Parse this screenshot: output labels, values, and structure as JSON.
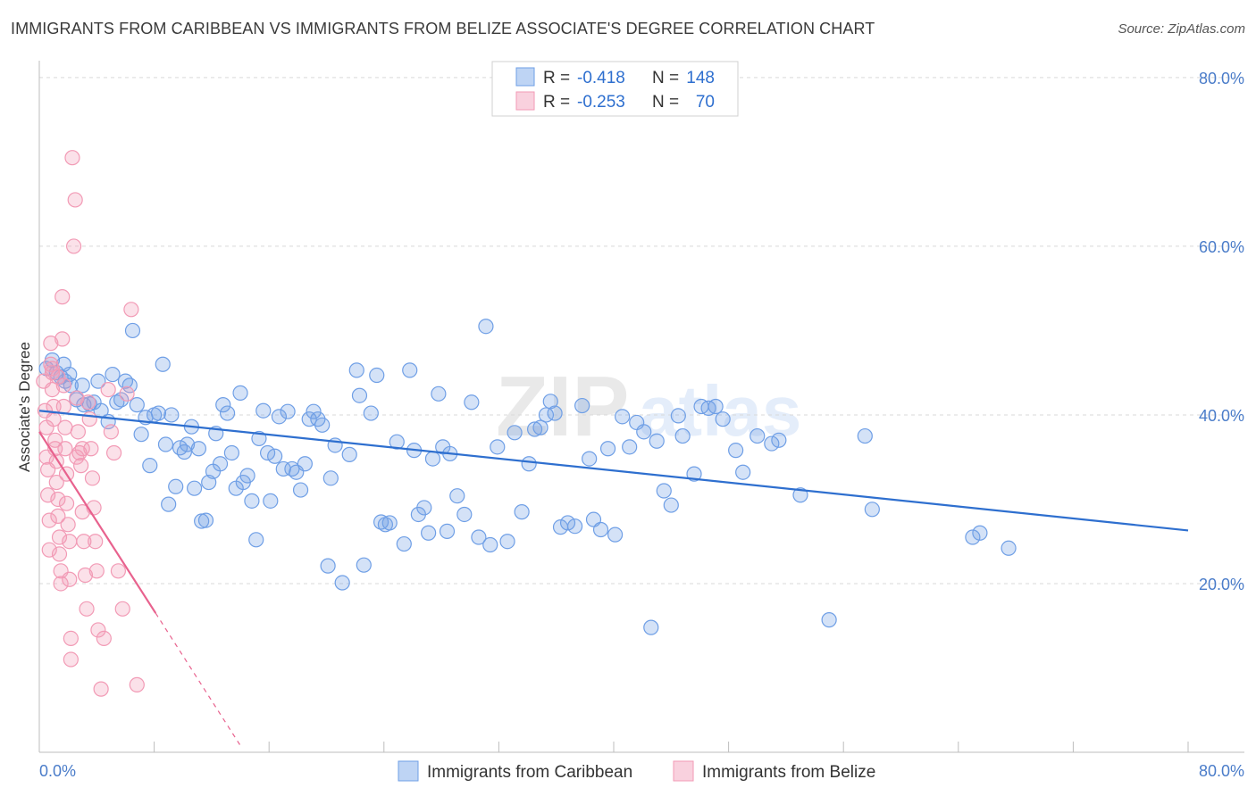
{
  "title": "IMMIGRANTS FROM CARIBBEAN VS IMMIGRANTS FROM BELIZE ASSOCIATE'S DEGREE CORRELATION CHART",
  "source": "Source: ZipAtlas.com",
  "watermark": "ZIPatlas",
  "colors": {
    "blue": "#6f9fe6",
    "blue_line": "#2e6fcf",
    "pink": "#f29ab5",
    "pink_line": "#e8628e",
    "tick_label": "#4a7cc9",
    "grid": "#d9d9d9"
  },
  "legend": {
    "rows": [
      {
        "r_label": "R = ",
        "r_value": "-0.418",
        "n_label": "N = ",
        "n_value": "148",
        "color": "blue"
      },
      {
        "r_label": "R = ",
        "r_value": "-0.253",
        "n_label": "N = ",
        "n_value": "70",
        "color": "pink"
      }
    ]
  },
  "bottom_legend": [
    {
      "label": "Immigrants from Caribbean",
      "color": "blue"
    },
    {
      "label": "Immigrants from Belize",
      "color": "pink"
    }
  ],
  "chart_data": {
    "type": "scatter",
    "ylabel": "Associate's Degree",
    "xlabel": "",
    "xlim": [
      0,
      80
    ],
    "ylim": [
      0,
      82
    ],
    "x_tick_labels": [
      "0.0%",
      "80.0%"
    ],
    "y_ticks": [
      20,
      40,
      60,
      80
    ],
    "y_tick_labels": [
      "20.0%",
      "40.0%",
      "60.0%",
      "80.0%"
    ],
    "grid": "horizontal dashed",
    "series": [
      {
        "name": "Immigrants from Caribbean",
        "color": "blue",
        "points": [
          [
            0.5,
            45.5
          ],
          [
            0.9,
            46.5
          ],
          [
            1.2,
            45.0
          ],
          [
            1.5,
            44.5
          ],
          [
            1.7,
            46.0
          ],
          [
            1.8,
            44.0
          ],
          [
            2.1,
            44.8
          ],
          [
            2.2,
            43.5
          ],
          [
            2.6,
            41.8
          ],
          [
            3.0,
            43.5
          ],
          [
            3.1,
            41.2
          ],
          [
            3.5,
            41.3
          ],
          [
            3.8,
            41.5
          ],
          [
            4.1,
            44.0
          ],
          [
            4.3,
            40.5
          ],
          [
            4.8,
            39.2
          ],
          [
            5.1,
            44.8
          ],
          [
            5.4,
            41.5
          ],
          [
            5.7,
            41.8
          ],
          [
            6.0,
            44.0
          ],
          [
            6.3,
            43.5
          ],
          [
            6.5,
            50.0
          ],
          [
            6.8,
            41.2
          ],
          [
            7.1,
            37.7
          ],
          [
            7.4,
            39.7
          ],
          [
            7.7,
            34.0
          ],
          [
            8.0,
            40.0
          ],
          [
            8.3,
            40.2
          ],
          [
            8.6,
            46.0
          ],
          [
            8.8,
            36.5
          ],
          [
            9.0,
            29.4
          ],
          [
            9.2,
            40.0
          ],
          [
            9.5,
            31.5
          ],
          [
            9.8,
            36.1
          ],
          [
            10.1,
            35.6
          ],
          [
            10.3,
            36.5
          ],
          [
            10.6,
            38.6
          ],
          [
            10.8,
            31.3
          ],
          [
            11.1,
            36.0
          ],
          [
            11.3,
            27.4
          ],
          [
            11.6,
            27.5
          ],
          [
            11.8,
            32.0
          ],
          [
            12.1,
            33.3
          ],
          [
            12.3,
            37.8
          ],
          [
            12.6,
            34.2
          ],
          [
            12.8,
            41.2
          ],
          [
            13.1,
            40.2
          ],
          [
            13.4,
            35.5
          ],
          [
            13.7,
            31.3
          ],
          [
            14.0,
            42.6
          ],
          [
            14.2,
            32.0
          ],
          [
            14.5,
            32.8
          ],
          [
            14.8,
            29.8
          ],
          [
            15.1,
            25.2
          ],
          [
            15.3,
            37.2
          ],
          [
            15.6,
            40.5
          ],
          [
            15.9,
            35.5
          ],
          [
            16.1,
            29.8
          ],
          [
            16.4,
            35.1
          ],
          [
            16.7,
            39.8
          ],
          [
            17.0,
            33.6
          ],
          [
            17.3,
            40.4
          ],
          [
            17.6,
            33.6
          ],
          [
            17.9,
            33.2
          ],
          [
            18.2,
            31.1
          ],
          [
            18.5,
            34.2
          ],
          [
            18.8,
            39.5
          ],
          [
            19.1,
            40.4
          ],
          [
            19.4,
            39.5
          ],
          [
            19.7,
            38.8
          ],
          [
            20.1,
            22.1
          ],
          [
            20.3,
            32.5
          ],
          [
            20.6,
            36.4
          ],
          [
            21.1,
            20.1
          ],
          [
            21.6,
            35.3
          ],
          [
            22.1,
            45.3
          ],
          [
            22.3,
            42.3
          ],
          [
            22.6,
            22.2
          ],
          [
            23.1,
            40.2
          ],
          [
            23.5,
            44.7
          ],
          [
            23.8,
            27.3
          ],
          [
            24.1,
            27.0
          ],
          [
            24.4,
            27.2
          ],
          [
            24.9,
            36.8
          ],
          [
            25.4,
            24.7
          ],
          [
            25.8,
            45.3
          ],
          [
            26.1,
            35.8
          ],
          [
            26.4,
            28.2
          ],
          [
            26.8,
            29.0
          ],
          [
            27.1,
            26.0
          ],
          [
            27.4,
            34.8
          ],
          [
            27.8,
            42.5
          ],
          [
            28.1,
            36.2
          ],
          [
            28.4,
            26.2
          ],
          [
            28.6,
            35.4
          ],
          [
            29.1,
            30.4
          ],
          [
            29.6,
            28.2
          ],
          [
            30.1,
            41.5
          ],
          [
            30.6,
            25.5
          ],
          [
            31.1,
            50.5
          ],
          [
            31.4,
            24.6
          ],
          [
            31.9,
            36.2
          ],
          [
            32.6,
            25.0
          ],
          [
            33.1,
            37.9
          ],
          [
            33.6,
            28.5
          ],
          [
            34.1,
            34.2
          ],
          [
            34.5,
            38.3
          ],
          [
            34.9,
            38.5
          ],
          [
            35.3,
            40.0
          ],
          [
            35.6,
            41.6
          ],
          [
            35.9,
            40.2
          ],
          [
            36.3,
            26.7
          ],
          [
            36.8,
            27.2
          ],
          [
            37.3,
            26.8
          ],
          [
            37.8,
            41.1
          ],
          [
            38.3,
            34.8
          ],
          [
            38.6,
            27.6
          ],
          [
            39.1,
            26.4
          ],
          [
            39.6,
            36.0
          ],
          [
            40.1,
            25.8
          ],
          [
            40.6,
            39.8
          ],
          [
            41.1,
            36.2
          ],
          [
            41.6,
            39.1
          ],
          [
            42.1,
            38.0
          ],
          [
            42.6,
            14.8
          ],
          [
            43.0,
            36.9
          ],
          [
            43.5,
            31.0
          ],
          [
            44.0,
            29.3
          ],
          [
            44.5,
            39.9
          ],
          [
            44.8,
            37.5
          ],
          [
            45.6,
            33.0
          ],
          [
            46.1,
            41.0
          ],
          [
            46.6,
            40.8
          ],
          [
            47.1,
            41.0
          ],
          [
            47.6,
            39.5
          ],
          [
            48.5,
            35.8
          ],
          [
            49.0,
            33.2
          ],
          [
            50.0,
            37.5
          ],
          [
            51.0,
            36.6
          ],
          [
            51.5,
            37.0
          ],
          [
            53.0,
            30.5
          ],
          [
            55.0,
            15.7
          ],
          [
            57.5,
            37.5
          ],
          [
            58.0,
            28.8
          ],
          [
            65.0,
            25.5
          ],
          [
            65.5,
            26.0
          ],
          [
            67.5,
            24.2
          ]
        ],
        "trend": {
          "x": [
            0,
            80
          ],
          "y": [
            40.5,
            26.3
          ]
        }
      },
      {
        "name": "Immigrants from Belize",
        "color": "pink",
        "points": [
          [
            0.3,
            44.0
          ],
          [
            0.4,
            40.5
          ],
          [
            0.5,
            38.5
          ],
          [
            0.5,
            35.0
          ],
          [
            0.6,
            33.5
          ],
          [
            0.6,
            30.5
          ],
          [
            0.7,
            27.5
          ],
          [
            0.7,
            24.0
          ],
          [
            0.8,
            48.5
          ],
          [
            0.8,
            46.0
          ],
          [
            0.9,
            45.0
          ],
          [
            0.9,
            43.0
          ],
          [
            1.0,
            41.0
          ],
          [
            1.0,
            39.5
          ],
          [
            1.1,
            37.0
          ],
          [
            1.1,
            36.0
          ],
          [
            1.2,
            34.5
          ],
          [
            1.2,
            32.0
          ],
          [
            1.3,
            30.0
          ],
          [
            1.3,
            28.0
          ],
          [
            1.4,
            25.5
          ],
          [
            1.4,
            23.5
          ],
          [
            1.5,
            21.5
          ],
          [
            1.5,
            20.0
          ],
          [
            1.6,
            54.0
          ],
          [
            1.6,
            49.0
          ],
          [
            1.7,
            43.5
          ],
          [
            1.7,
            41.0
          ],
          [
            1.8,
            38.5
          ],
          [
            1.8,
            36.0
          ],
          [
            1.9,
            33.0
          ],
          [
            1.9,
            29.5
          ],
          [
            2.0,
            27.0
          ],
          [
            2.1,
            25.0
          ],
          [
            2.1,
            20.5
          ],
          [
            2.2,
            13.5
          ],
          [
            2.2,
            11.0
          ],
          [
            2.3,
            70.5
          ],
          [
            2.4,
            60.0
          ],
          [
            2.5,
            65.5
          ],
          [
            2.6,
            42.0
          ],
          [
            2.7,
            38.0
          ],
          [
            2.8,
            35.5
          ],
          [
            2.9,
            34.0
          ],
          [
            3.0,
            28.5
          ],
          [
            3.1,
            25.0
          ],
          [
            3.2,
            21.0
          ],
          [
            3.3,
            17.0
          ],
          [
            3.4,
            41.5
          ],
          [
            3.5,
            39.5
          ],
          [
            3.6,
            36.0
          ],
          [
            3.7,
            32.5
          ],
          [
            3.8,
            29.0
          ],
          [
            3.9,
            25.0
          ],
          [
            4.0,
            21.5
          ],
          [
            4.1,
            14.5
          ],
          [
            4.3,
            7.5
          ],
          [
            4.5,
            13.5
          ],
          [
            4.8,
            43.0
          ],
          [
            5.0,
            38.0
          ],
          [
            5.2,
            35.5
          ],
          [
            5.5,
            21.5
          ],
          [
            5.8,
            17.0
          ],
          [
            6.1,
            42.5
          ],
          [
            6.4,
            52.5
          ],
          [
            6.8,
            8.0
          ],
          [
            0.9,
            45.5
          ],
          [
            1.3,
            44.5
          ],
          [
            2.6,
            35.0
          ],
          [
            3.0,
            36.0
          ]
        ],
        "trend": {
          "x": [
            0,
            8.1
          ],
          "y": [
            38.0,
            16.5
          ]
        },
        "trend_extension": {
          "x": [
            8.1,
            14.0
          ],
          "y": [
            16.5,
            0.8
          ]
        }
      }
    ]
  }
}
